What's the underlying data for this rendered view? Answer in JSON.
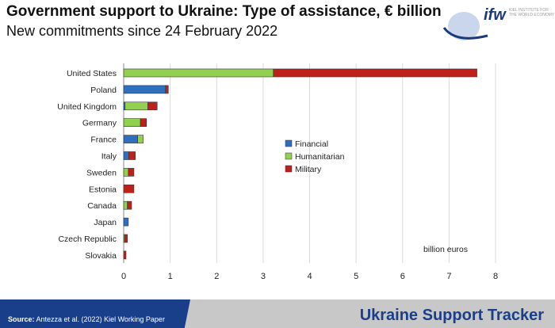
{
  "header": {
    "title": "Government support to Ukraine: Type of assistance, € billion",
    "subtitle": "New commitments since 24 February 2022",
    "logo_text": "ifw",
    "logo_sub": "KIEL INSTITUTE FOR THE WORLD ECONOMY"
  },
  "footer": {
    "source_label": "Source:",
    "source_text": " Antezza et al. (2022) Kiel Working Paper",
    "tracker": "Ukraine Support Tracker"
  },
  "colors": {
    "Financial": "#2e6fc0",
    "Humanitarian": "#92d050",
    "Military": "#c0201a"
  },
  "chart_data": {
    "type": "bar",
    "orientation": "horizontal",
    "stacked": true,
    "title": "Government support to Ukraine: Type of assistance, € billion",
    "xlabel": "billion euros",
    "xlim": [
      0,
      8
    ],
    "xticks": [
      0,
      1,
      2,
      3,
      4,
      5,
      6,
      7,
      8
    ],
    "legend_placement": "center",
    "categories": [
      "United States",
      "Poland",
      "United Kingdom",
      "Germany",
      "France",
      "Italy",
      "Sweden",
      "Estonia",
      "Canada",
      "Japan",
      "Czech Republic",
      "Slovakia"
    ],
    "series": [
      {
        "name": "Financial",
        "values": [
          0,
          0.9,
          0.03,
          0,
          0.3,
          0.11,
          0,
          0,
          0,
          0.1,
          0,
          0
        ]
      },
      {
        "name": "Humanitarian",
        "values": [
          3.22,
          0,
          0.49,
          0.36,
          0.12,
          0,
          0.1,
          0,
          0.08,
          0,
          0.02,
          0
        ]
      },
      {
        "name": "Military",
        "values": [
          4.38,
          0.06,
          0.2,
          0.13,
          0,
          0.14,
          0.12,
          0.22,
          0.09,
          0,
          0.06,
          0.05
        ]
      }
    ]
  }
}
